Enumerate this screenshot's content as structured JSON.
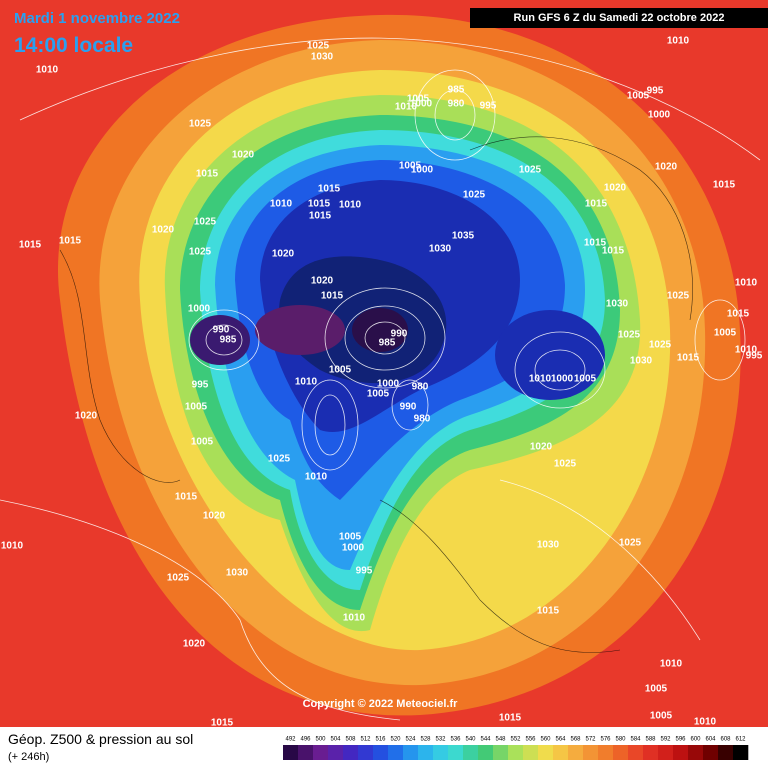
{
  "header": {
    "date": "Mardi 1 novembre 2022",
    "time": "14:00 locale",
    "run": "Run GFS 6 Z du Samedi 22 octobre 2022"
  },
  "copyright": "Copyright © 2022 Meteociel.fr",
  "footer": {
    "title": "Géop. Z500 & pression au sol",
    "lead": "(+ 246h)"
  },
  "legend": {
    "levels": [
      492,
      496,
      500,
      504,
      508,
      512,
      516,
      520,
      524,
      528,
      532,
      536,
      540,
      544,
      548,
      552,
      556,
      560,
      564,
      568,
      572,
      576,
      580,
      584,
      588,
      592,
      596,
      600,
      604,
      608,
      612
    ]
  },
  "pressure_labels": [
    1010,
    1025,
    1030,
    1010,
    1025,
    1020,
    1015,
    985,
    1005,
    1010,
    1000,
    980,
    995,
    1005,
    995,
    1000,
    1005,
    1000,
    1025,
    1020,
    1015,
    1020,
    1015,
    1010,
    1015,
    1010,
    1015,
    1025,
    1015,
    1025,
    1020,
    1035,
    1030,
    1025,
    1020,
    1015,
    1015,
    1015,
    1015,
    1020,
    1015,
    1025,
    1030,
    1010,
    1015,
    1000,
    990,
    985,
    990,
    985,
    1025,
    1005,
    1010,
    995,
    1025,
    1015,
    1030,
    1005,
    1010,
    1000,
    980,
    1005,
    1010,
    1000,
    1005,
    995,
    1005,
    990,
    980,
    1005,
    1020,
    1020,
    1025,
    1025,
    1010,
    1015,
    1020,
    1010,
    1030,
    1025,
    1005,
    1000,
    995,
    1025,
    1030,
    1015,
    1010,
    1020,
    1010,
    1005,
    1015,
    1005,
    1015,
    1010
  ]
}
